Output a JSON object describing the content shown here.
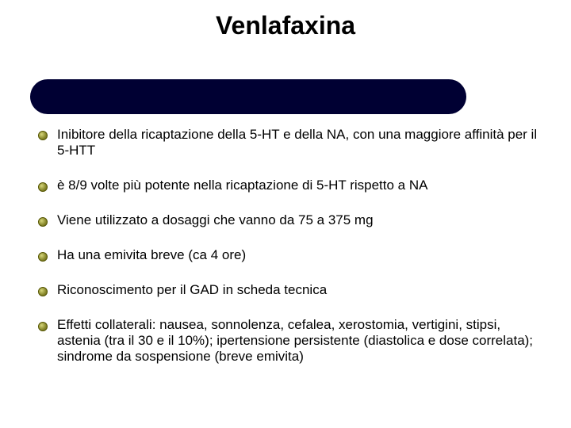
{
  "title": "Venlafaxina",
  "bar": {
    "background_color": "#000033"
  },
  "bullets": [
    {
      "text": "Inibitore della ricaptazione della 5-HT e della NA, con una maggiore affinità per il 5-HTT"
    },
    {
      "text": "è 8/9 volte più potente nella ricaptazione di 5-HT rispetto a NA"
    },
    {
      "text": "Viene utilizzato a dosaggi che vanno da 75 a 375 mg"
    },
    {
      "text": "Ha una emivita breve (ca 4 ore)"
    },
    {
      "text": "Riconoscimento per il GAD in scheda tecnica"
    },
    {
      "text": "Effetti collaterali: nausea, sonnolenza, cefalea, xerostomia, vertigini, stipsi, astenia (tra il 30 e il 10%); ipertensione persistente (diastolica e dose correlata); sindrome da sospensione (breve emivita)"
    }
  ],
  "style": {
    "body_fontsize": 17,
    "title_fontsize": 32,
    "bullet_spacing": 24,
    "text_color": "#000000",
    "background_color": "#ffffff",
    "bullet_marker_border": "#545400",
    "bullet_marker_fill_light": "#d6d67a",
    "bullet_marker_fill_dark": "#6a6a20"
  }
}
